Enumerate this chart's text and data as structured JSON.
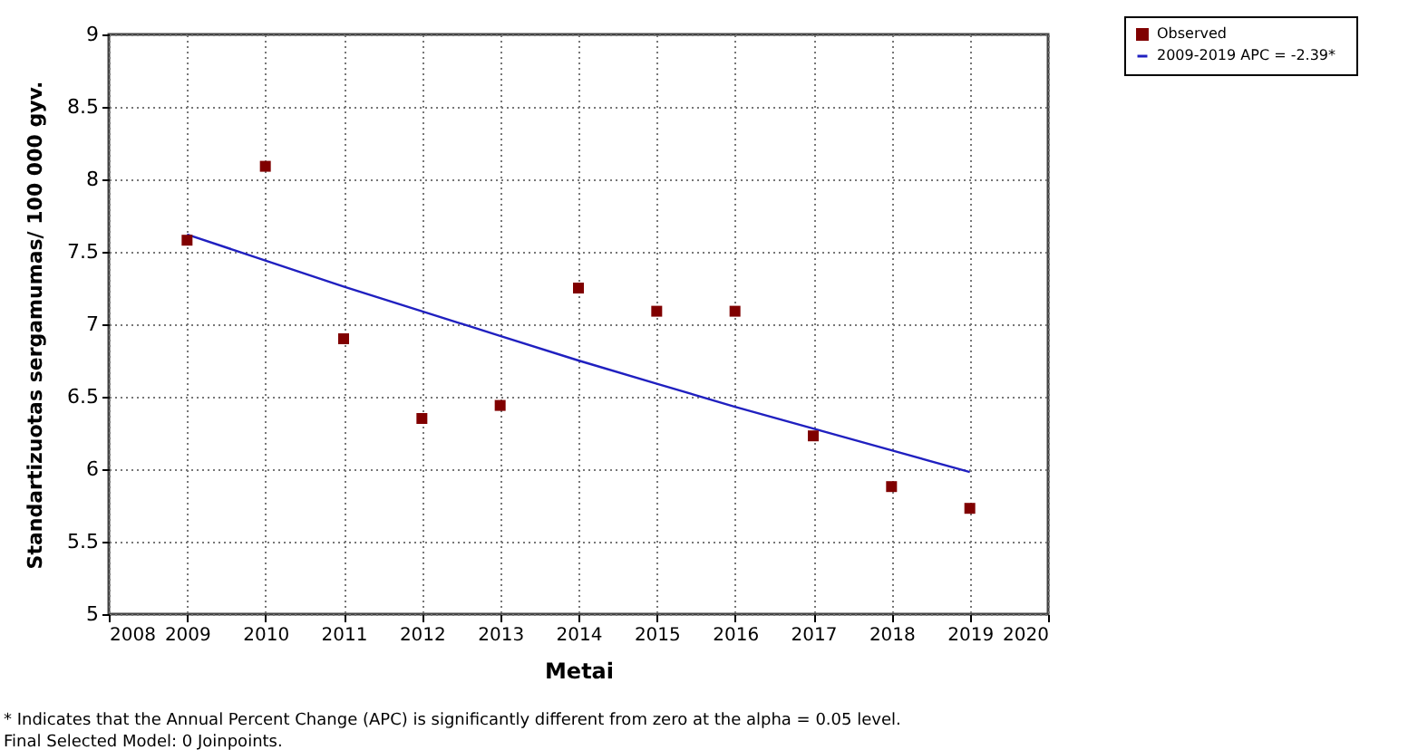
{
  "chart_data": {
    "type": "scatter",
    "xlabel": "Metai",
    "ylabel": "Standartizuotas sergamumas/ 100 000 gyv.",
    "x": [
      2009,
      2010,
      2011,
      2012,
      2013,
      2014,
      2015,
      2016,
      2017,
      2018,
      2019
    ],
    "series": [
      {
        "name": "Observed",
        "color": "#800000",
        "marker": "square",
        "values": [
          7.58,
          8.09,
          6.9,
          6.35,
          6.44,
          7.25,
          7.09,
          7.09,
          6.23,
          5.88,
          5.73
        ]
      },
      {
        "name": "2009-2019 APC  =  -2.39*",
        "type": "line",
        "color": "#2020c0",
        "line_style": "solid",
        "x": [
          2009,
          2010,
          2011,
          2012,
          2013,
          2014,
          2015,
          2016,
          2017,
          2018,
          2019
        ],
        "values": [
          7.62,
          7.44,
          7.26,
          7.09,
          6.92,
          6.75,
          6.59,
          6.43,
          6.28,
          6.13,
          5.98
        ]
      }
    ],
    "xlim": [
      2008,
      2020
    ],
    "xticks": [
      2008,
      2009,
      2010,
      2011,
      2012,
      2013,
      2014,
      2015,
      2016,
      2017,
      2018,
      2019,
      2020
    ],
    "ylim": [
      5,
      9
    ],
    "yticks": [
      5,
      5.5,
      6,
      6.5,
      7,
      7.5,
      8,
      8.5,
      9
    ],
    "grid": true,
    "legend": "top right",
    "annotations": [
      "* Indicates that the Annual Percent Change (APC) is significantly different from zero at the alpha = 0.05 level.",
      "Final Selected Model: 0 Joinpoints."
    ]
  }
}
